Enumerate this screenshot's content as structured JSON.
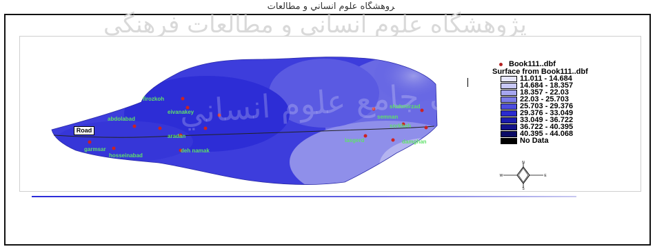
{
  "header": {
    "text": "ﺮﻭﻫﺸﮕﺎﻩ ﻋﻠﻮﻡ ﺍﻧﺴﺎﻧﻲ ﻭ ﻣﻄﺎﻟﻌﺎﺕ"
  },
  "watermark": {
    "text": "ﭘﮋﻭﻫﺸﮕﺎﻩ ﻋﻠﻮﻡ ﺍﻧﺴﺎﻧﻲ ﻭ ﻣﻄﺎﻟﻌﺎﺕ ﻓﺮﻫﻨﮕﻲ",
    "overlay_text": "ﭘﺮﺗﺎﻝ ﺟﺎﻣﻊ ﻋﻠﻮﻡ ﺍﻧﺴﺎﻧﻲ"
  },
  "legend": {
    "point_layer": "Book111..dbf",
    "surface_title": "Surface from Book111..dbf",
    "classes": [
      {
        "label": "11.011 - 14.684",
        "color": "#e6e6fb"
      },
      {
        "label": "14.684 - 18.357",
        "color": "#c8c8f5"
      },
      {
        "label": "18.357 - 22.03",
        "color": "#a6a6ef"
      },
      {
        "label": "22.03 - 25.703",
        "color": "#7c7ce8"
      },
      {
        "label": "25.703 - 29.376",
        "color": "#4d4de0"
      },
      {
        "label": "29.376 - 33.049",
        "color": "#2b2bd0"
      },
      {
        "label": "33.049 - 36.722",
        "color": "#1c1cae"
      },
      {
        "label": "36.722 - 40.395",
        "color": "#13138a"
      },
      {
        "label": "40.395 - 44.068",
        "color": "#0b0b66"
      },
      {
        "label": "No Data",
        "color": "#000000"
      }
    ]
  },
  "map": {
    "road_label": "Road",
    "stations": [
      {
        "name": "firozkoh"
      },
      {
        "name": "semnan"
      },
      {
        "name": "sorkheh"
      },
      {
        "name": "shahmirzad"
      },
      {
        "name": "eivanakey"
      },
      {
        "name": "aradan"
      },
      {
        "name": "garmsar"
      },
      {
        "name": "deh namak"
      },
      {
        "name": "lasgerd"
      },
      {
        "name": "damghan"
      },
      {
        "name": "abdolabad"
      },
      {
        "name": "hosseinabad"
      }
    ]
  },
  "north_arrow": {
    "n": "N",
    "s": "S",
    "e": "E",
    "w": "W"
  }
}
